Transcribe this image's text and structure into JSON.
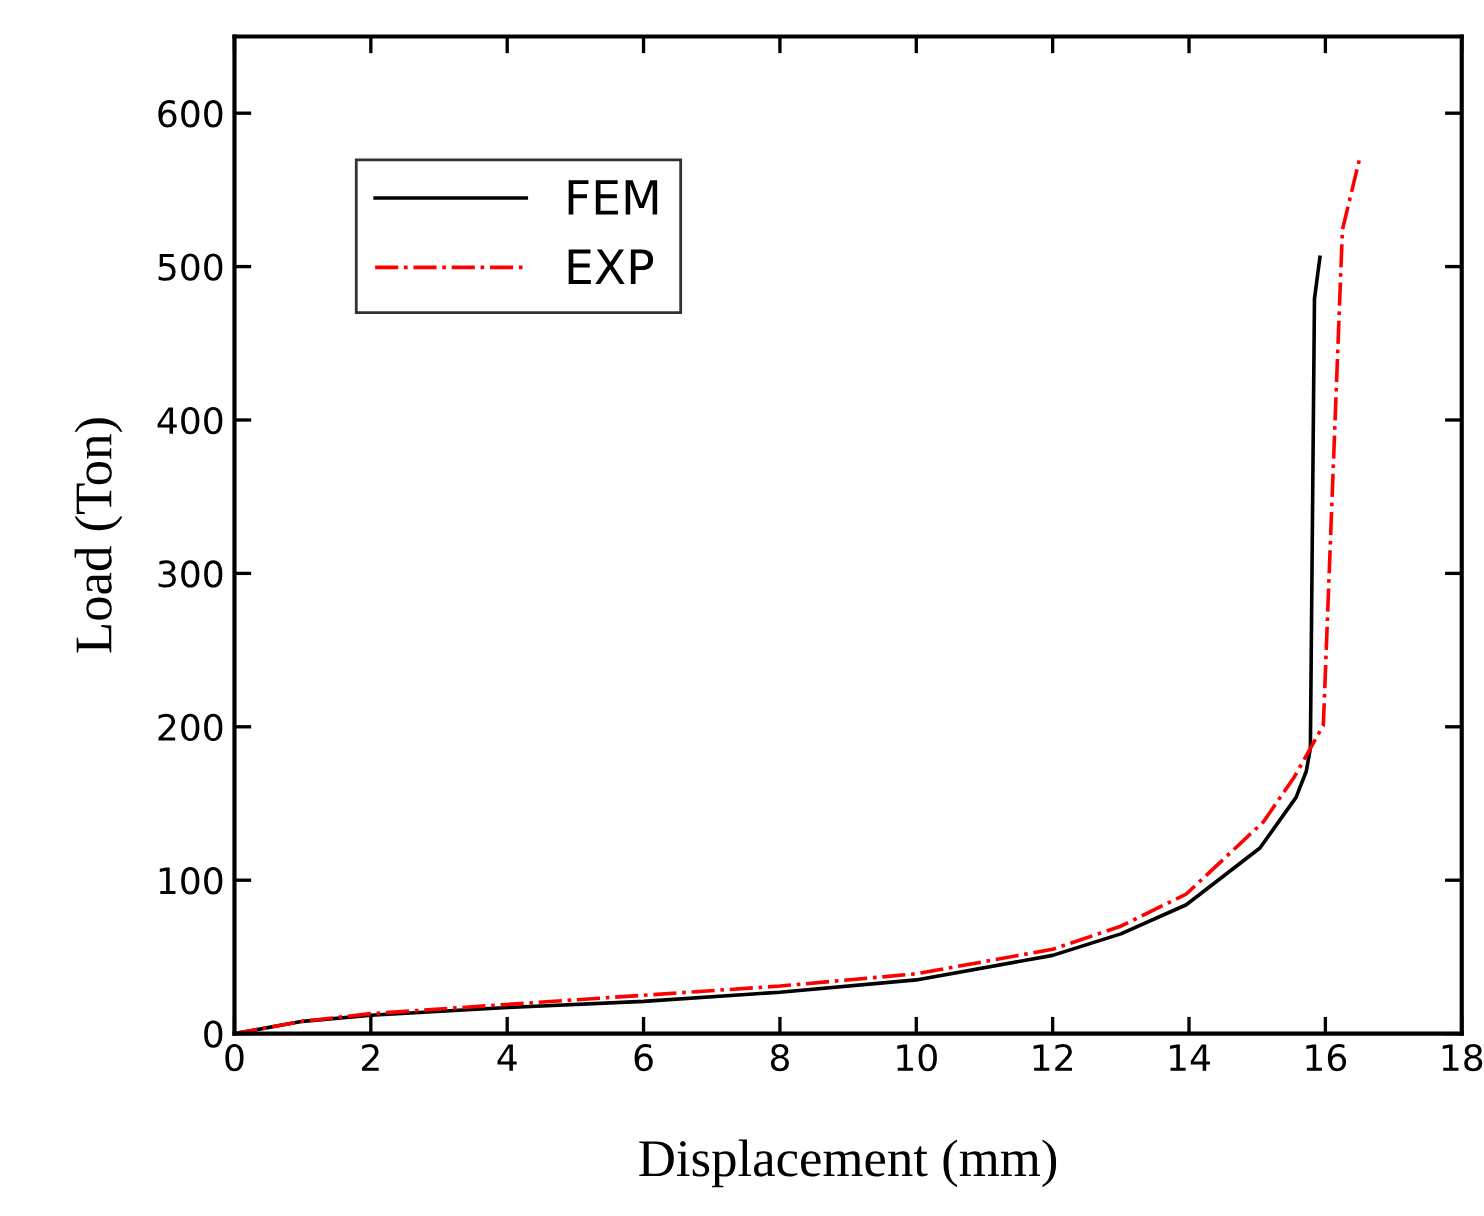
{
  "chart_data": {
    "type": "line",
    "xlabel": "Displacement (mm)",
    "ylabel": "Load (Ton)",
    "xlim": [
      0,
      18
    ],
    "xticks": [
      0,
      2,
      4,
      6,
      8,
      10,
      12,
      14,
      16,
      18
    ],
    "ylim": [
      0,
      650
    ],
    "yticks": [
      0,
      100,
      200,
      300,
      400,
      500,
      600
    ],
    "legend": "top left",
    "grid": false,
    "series": [
      {
        "name": "FEM",
        "color": "#000000",
        "line_style": "solid",
        "x": [
          0,
          1,
          2,
          4,
          6,
          8,
          10,
          12,
          13,
          13.96,
          15.04,
          15.57,
          15.72,
          15.78,
          15.84,
          15.92
        ],
        "values": [
          0,
          8,
          12,
          17,
          21,
          27,
          35,
          51,
          65,
          84,
          121,
          154,
          171,
          186,
          479,
          506
        ]
      },
      {
        "name": "EXP",
        "color": "#ff0000",
        "line_style": "dashdot",
        "x": [
          0,
          1,
          2,
          4,
          6,
          8,
          10,
          12,
          13,
          13.96,
          15.09,
          15.54,
          15.97,
          16.25,
          16.5
        ],
        "values": [
          0,
          8,
          13,
          19,
          25,
          31,
          39,
          55,
          70,
          91,
          138,
          167,
          201,
          524,
          570
        ]
      }
    ]
  }
}
